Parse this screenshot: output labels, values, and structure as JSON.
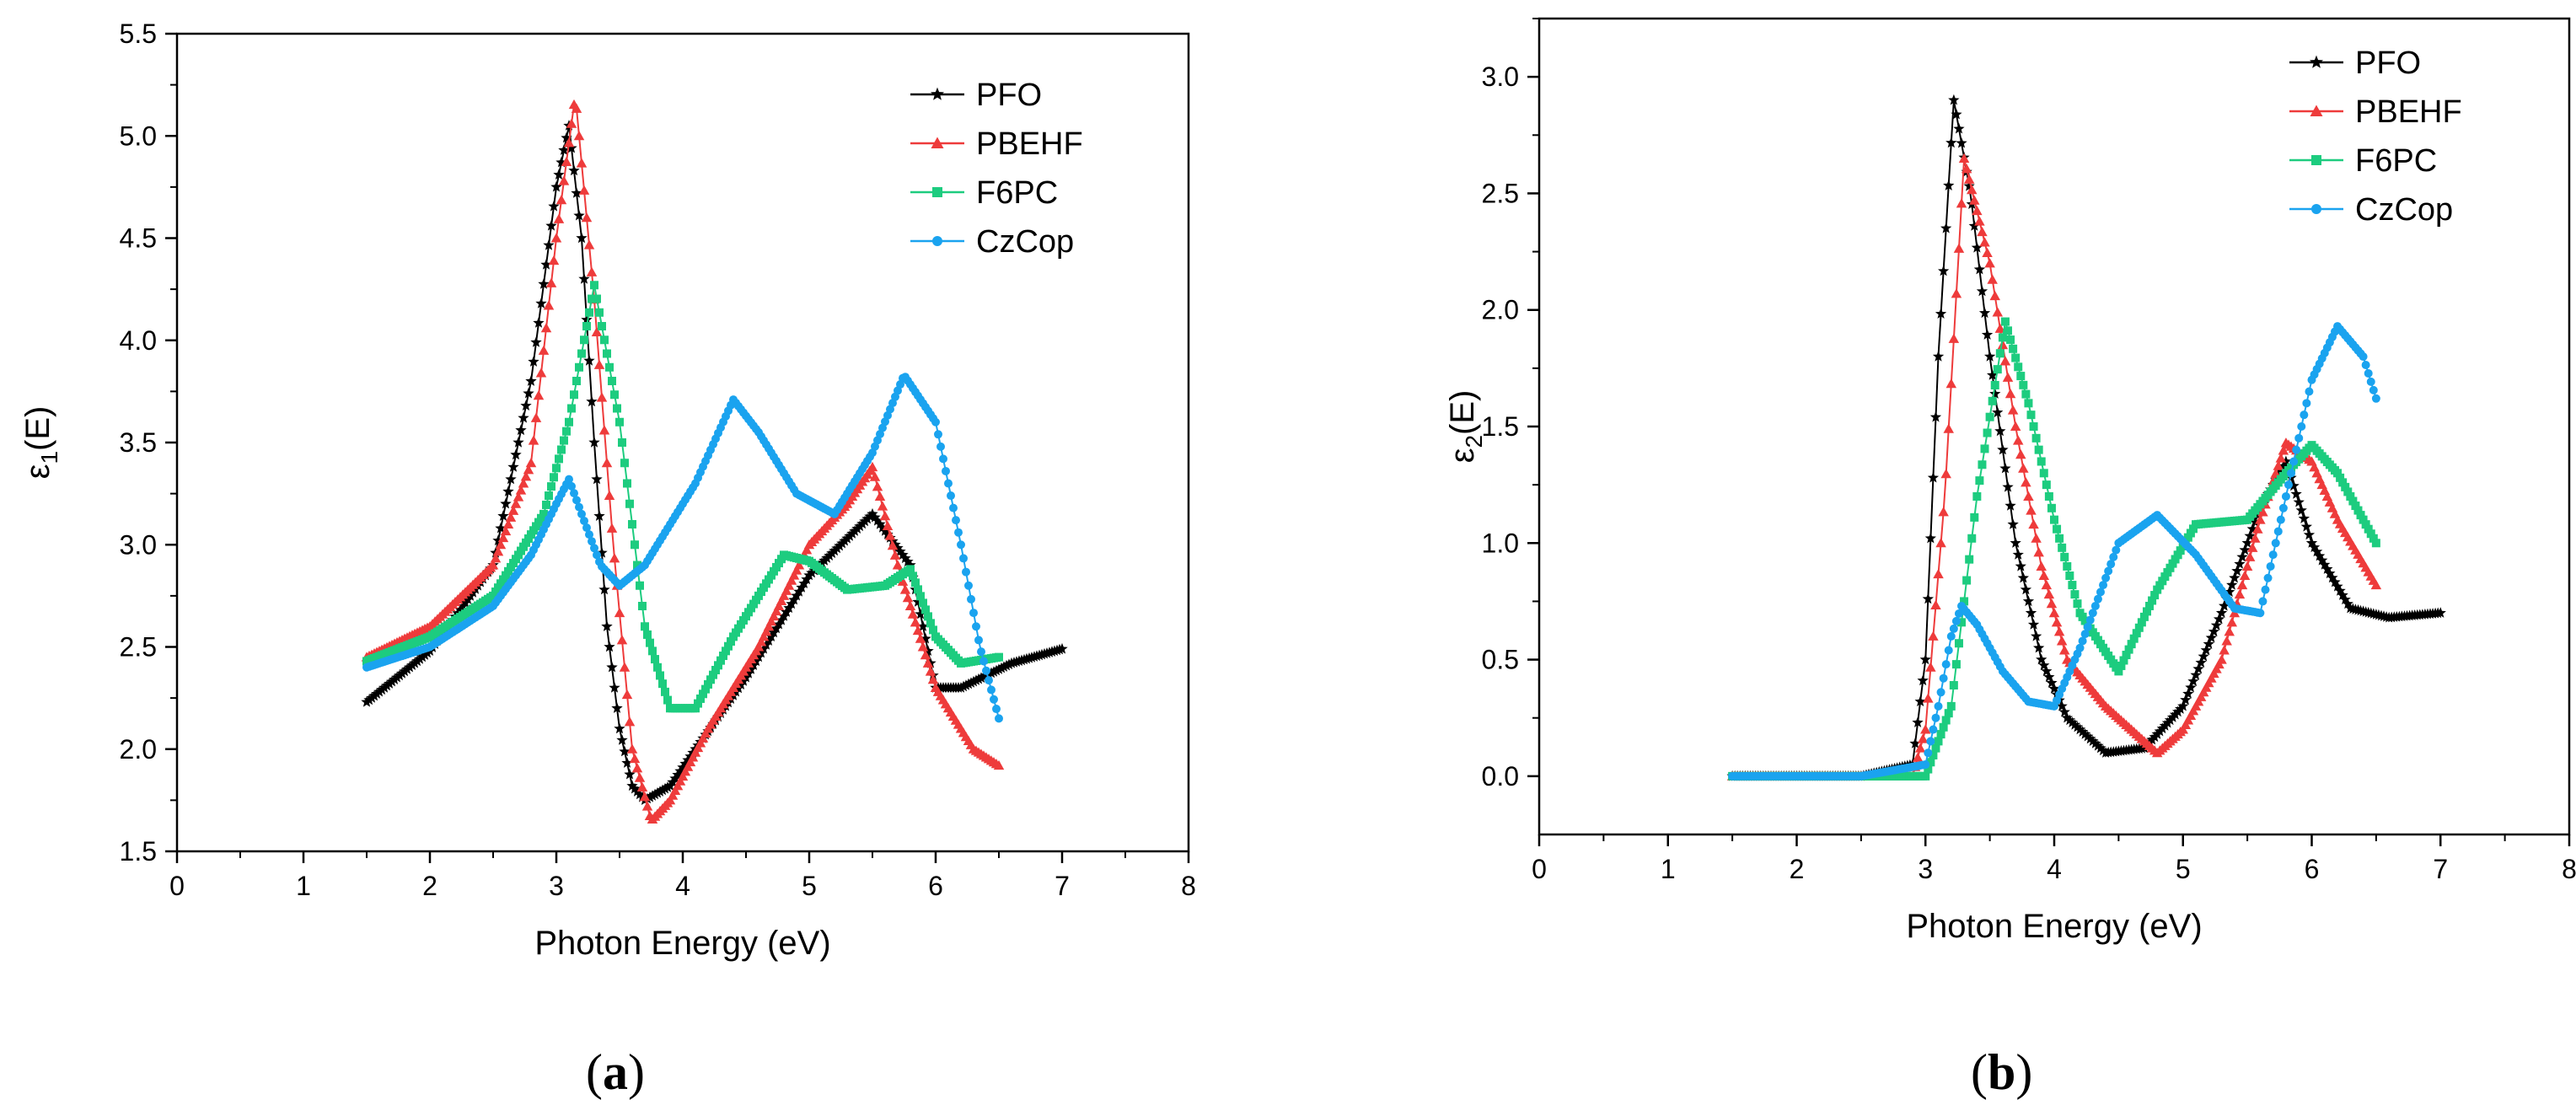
{
  "colors": {
    "PFO": "#000000",
    "PBEHF": "#ee3b3b",
    "F6PC": "#1dcc7f",
    "CzCop": "#1aa3ef"
  },
  "chart_data": [
    {
      "id": "a",
      "type": "scatter",
      "panel_label": "a",
      "xlabel": "Photon Energy (eV)",
      "ylabel_base": "ε",
      "ylabel_sub": "1",
      "ylabel_tail": "(E)",
      "xlim": [
        0,
        8
      ],
      "ylim": [
        1.5,
        5.5
      ],
      "xticks": [
        0,
        1,
        2,
        3,
        4,
        5,
        6,
        7,
        8
      ],
      "yticks": [
        1.5,
        2.0,
        2.5,
        3.0,
        3.5,
        4.0,
        4.5,
        5.0,
        5.5
      ],
      "ytick_labels": [
        "1.5",
        "2.0",
        "2.5",
        "3.0",
        "3.5",
        "4.0",
        "4.5",
        "5.0",
        "5.5"
      ],
      "legend_position": "top-right",
      "series": [
        {
          "name": "PFO",
          "marker": "star",
          "color": "#000000",
          "x": [
            1.5,
            2.0,
            2.5,
            2.8,
            3.0,
            3.1,
            3.2,
            3.3,
            3.4,
            3.5,
            3.6,
            3.7,
            3.9,
            4.1,
            4.5,
            5.0,
            5.5,
            5.8,
            6.0,
            6.2,
            6.6,
            7.0
          ],
          "y": [
            2.23,
            2.48,
            2.9,
            3.8,
            4.75,
            5.05,
            4.5,
            3.5,
            2.6,
            2.1,
            1.82,
            1.75,
            1.82,
            2.0,
            2.35,
            2.85,
            3.15,
            2.9,
            2.3,
            2.3,
            2.42,
            2.49
          ]
        },
        {
          "name": "PBEHF",
          "marker": "triangle",
          "color": "#ee3b3b",
          "x": [
            1.5,
            2.0,
            2.5,
            2.8,
            3.0,
            3.15,
            3.3,
            3.45,
            3.6,
            3.75,
            3.9,
            4.2,
            4.6,
            5.0,
            5.3,
            5.5,
            5.7,
            6.0,
            6.3,
            6.5
          ],
          "y": [
            2.45,
            2.6,
            2.9,
            3.4,
            4.5,
            5.2,
            4.2,
            3.0,
            2.0,
            1.65,
            1.75,
            2.1,
            2.5,
            3.0,
            3.2,
            3.38,
            2.9,
            2.3,
            2.0,
            1.92
          ]
        },
        {
          "name": "F6PC",
          "marker": "square",
          "color": "#1dcc7f",
          "x": [
            1.5,
            2.0,
            2.5,
            2.9,
            3.1,
            3.3,
            3.5,
            3.7,
            3.9,
            4.1,
            4.4,
            4.8,
            5.0,
            5.3,
            5.6,
            5.8,
            6.0,
            6.2,
            6.5
          ],
          "y": [
            2.43,
            2.55,
            2.75,
            3.15,
            3.6,
            4.27,
            3.6,
            2.6,
            2.2,
            2.2,
            2.55,
            2.95,
            2.92,
            2.78,
            2.8,
            2.88,
            2.55,
            2.42,
            2.45
          ]
        },
        {
          "name": "CzCop",
          "marker": "circle",
          "color": "#1aa3ef",
          "x": [
            1.5,
            2.0,
            2.5,
            2.8,
            3.0,
            3.1,
            3.2,
            3.35,
            3.5,
            3.7,
            3.9,
            4.1,
            4.4,
            4.6,
            4.9,
            5.2,
            5.5,
            5.75,
            6.0,
            6.2,
            6.35,
            6.5
          ],
          "y": [
            2.4,
            2.5,
            2.7,
            2.95,
            3.2,
            3.32,
            3.15,
            2.9,
            2.8,
            2.9,
            3.1,
            3.3,
            3.71,
            3.55,
            3.25,
            3.15,
            3.45,
            3.83,
            3.6,
            3.0,
            2.5,
            2.15
          ]
        }
      ]
    },
    {
      "id": "b",
      "type": "scatter",
      "panel_label": "b",
      "xlabel": "Photon Energy (eV)",
      "ylabel_base": "ε",
      "ylabel_sub": "2",
      "ylabel_tail": "(E)",
      "xlim": [
        0,
        8
      ],
      "ylim": [
        -0.25,
        3.25
      ],
      "xticks": [
        0,
        1,
        2,
        3,
        4,
        5,
        6,
        7,
        8
      ],
      "yticks": [
        0.0,
        0.5,
        1.0,
        1.5,
        2.0,
        2.5,
        3.0
      ],
      "ytick_labels": [
        "0.0",
        "0.5",
        "1.0",
        "1.5",
        "2.0",
        "2.5",
        "3.0"
      ],
      "legend_position": "top-right",
      "series": [
        {
          "name": "PFO",
          "marker": "star",
          "color": "#000000",
          "x": [
            1.5,
            2.5,
            2.9,
            3.0,
            3.1,
            3.22,
            3.35,
            3.5,
            3.7,
            3.9,
            4.1,
            4.4,
            4.7,
            5.0,
            5.3,
            5.6,
            5.8,
            6.0,
            6.3,
            6.6,
            7.0
          ],
          "y": [
            0.0,
            0.0,
            0.05,
            0.5,
            1.8,
            2.9,
            2.5,
            1.8,
            1.0,
            0.5,
            0.25,
            0.1,
            0.12,
            0.3,
            0.7,
            1.15,
            1.35,
            1.0,
            0.72,
            0.68,
            0.7
          ]
        },
        {
          "name": "PBEHF",
          "marker": "triangle",
          "color": "#ee3b3b",
          "x": [
            1.5,
            2.5,
            2.9,
            3.0,
            3.15,
            3.3,
            3.5,
            3.7,
            3.9,
            4.1,
            4.4,
            4.8,
            5.0,
            5.3,
            5.6,
            5.8,
            6.0,
            6.2,
            6.5
          ],
          "y": [
            0.0,
            0.0,
            0.0,
            0.2,
            1.2,
            2.65,
            2.2,
            1.5,
            0.9,
            0.5,
            0.3,
            0.1,
            0.2,
            0.5,
            1.1,
            1.43,
            1.35,
            1.1,
            0.82
          ]
        },
        {
          "name": "F6PC",
          "marker": "square",
          "color": "#1dcc7f",
          "x": [
            1.5,
            2.5,
            3.0,
            3.2,
            3.4,
            3.62,
            3.8,
            4.0,
            4.2,
            4.5,
            4.8,
            5.1,
            5.5,
            5.8,
            6.0,
            6.2,
            6.5
          ],
          "y": [
            0.0,
            0.0,
            0.0,
            0.3,
            1.2,
            1.95,
            1.6,
            1.1,
            0.7,
            0.45,
            0.8,
            1.08,
            1.1,
            1.3,
            1.42,
            1.3,
            1.0
          ]
        },
        {
          "name": "CzCop",
          "marker": "circle",
          "color": "#1aa3ef",
          "x": [
            1.5,
            2.5,
            3.0,
            3.1,
            3.2,
            3.28,
            3.4,
            3.6,
            3.8,
            4.0,
            4.2,
            4.5,
            4.8,
            5.1,
            5.4,
            5.6,
            5.8,
            6.0,
            6.2,
            6.4,
            6.5
          ],
          "y": [
            0.0,
            0.0,
            0.05,
            0.3,
            0.6,
            0.73,
            0.65,
            0.45,
            0.32,
            0.3,
            0.55,
            1.0,
            1.12,
            0.95,
            0.72,
            0.7,
            1.2,
            1.7,
            1.93,
            1.8,
            1.62
          ]
        }
      ]
    }
  ]
}
